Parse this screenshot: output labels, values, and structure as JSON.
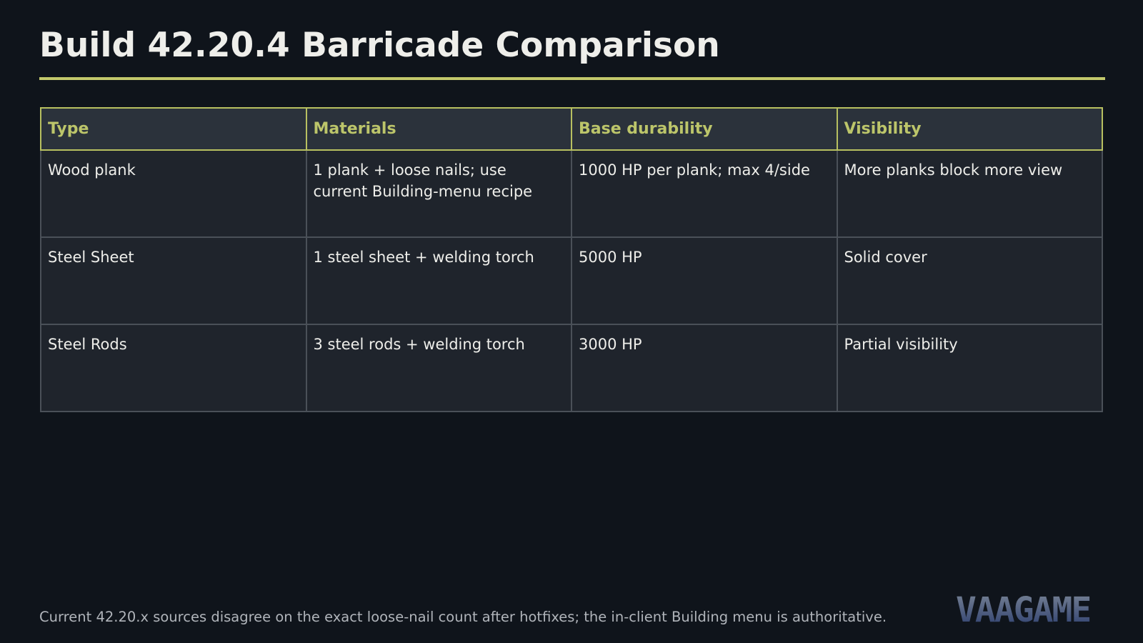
{
  "header": {
    "title": "Build 42.20.4 Barricade Comparison"
  },
  "table": {
    "columns": [
      "Type",
      "Materials",
      "Base durability",
      "Visibility"
    ],
    "rows": [
      [
        "Wood plank",
        "1 plank + loose nails; use current Building-menu recipe",
        "1000 HP per plank; max 4/side",
        "More planks block more view"
      ],
      [
        "Steel Sheet",
        "1 steel sheet + welding torch",
        "5000 HP",
        "Solid cover"
      ],
      [
        "Steel Rods",
        "3 steel rods + welding torch",
        "3000 HP",
        "Partial visibility"
      ]
    ]
  },
  "footer": {
    "note": "Current 42.20.x sources disagree on the exact loose-nail count after hotfixes; the in-client Building menu is authoritative.",
    "logo": "VAAGAME"
  }
}
